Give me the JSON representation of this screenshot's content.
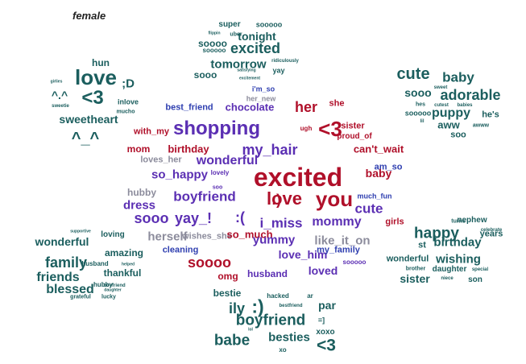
{
  "title": "female",
  "palette": {
    "teal": "#1b5e5e",
    "purple": "#5b2fb3",
    "blue": "#2f3fb0",
    "red": "#b0102a",
    "gray": "#8c8c9c",
    "darkred": "#8b0a22"
  },
  "words": [
    {
      "t": "super",
      "c": "teal"
    },
    {
      "t": "sooooo",
      "c": "teal"
    },
    {
      "t": "flippin",
      "c": "teal"
    },
    {
      "t": "uber",
      "c": "teal"
    },
    {
      "t": "tonight",
      "c": "teal"
    },
    {
      "t": "soooo",
      "c": "teal"
    },
    {
      "t": "sooooo",
      "c": "teal"
    },
    {
      "t": "excited",
      "c": "teal"
    },
    {
      "t": "tomorrow",
      "c": "teal"
    },
    {
      "t": "ridiculously",
      "c": "teal"
    },
    {
      "t": "sooo",
      "c": "teal"
    },
    {
      "t": "satisfying",
      "c": "teal"
    },
    {
      "t": "excitement",
      "c": "teal"
    },
    {
      "t": "yay",
      "c": "teal"
    },
    {
      "t": "hun",
      "c": "teal"
    },
    {
      "t": "love",
      "c": "teal"
    },
    {
      "t": ";D",
      "c": "teal"
    },
    {
      "t": "girlies",
      "c": "teal"
    },
    {
      "t": "^.^",
      "c": "teal"
    },
    {
      "t": "<3",
      "c": "teal"
    },
    {
      "t": "inlove",
      "c": "teal"
    },
    {
      "t": "sweetie",
      "c": "teal"
    },
    {
      "t": "mucho",
      "c": "teal"
    },
    {
      "t": "sweetheart",
      "c": "teal"
    },
    {
      "t": "^_^",
      "c": "teal"
    },
    {
      "t": "cute",
      "c": "teal"
    },
    {
      "t": "baby",
      "c": "teal"
    },
    {
      "t": "sweet",
      "c": "teal"
    },
    {
      "t": "sooo",
      "c": "teal"
    },
    {
      "t": "adorable",
      "c": "teal"
    },
    {
      "t": "hes",
      "c": "teal"
    },
    {
      "t": "cutest",
      "c": "teal"
    },
    {
      "t": "babies",
      "c": "teal"
    },
    {
      "t": "sooooo",
      "c": "teal"
    },
    {
      "t": "puppy",
      "c": "teal"
    },
    {
      "t": "he's",
      "c": "teal"
    },
    {
      "t": "lil",
      "c": "teal"
    },
    {
      "t": "aww",
      "c": "teal"
    },
    {
      "t": "awww",
      "c": "teal"
    },
    {
      "t": "soo",
      "c": "teal"
    },
    {
      "t": "her_new",
      "c": "gray"
    },
    {
      "t": "i'm_so",
      "c": "blue"
    },
    {
      "t": "best_friend",
      "c": "blue"
    },
    {
      "t": "chocolate",
      "c": "purple"
    },
    {
      "t": "her",
      "c": "red"
    },
    {
      "t": "she",
      "c": "red"
    },
    {
      "t": "with_my",
      "c": "red"
    },
    {
      "t": "shopping",
      "c": "purple"
    },
    {
      "t": "ugh",
      "c": "red"
    },
    {
      "t": "<3",
      "c": "red"
    },
    {
      "t": "sister",
      "c": "red"
    },
    {
      "t": "proud_of",
      "c": "red"
    },
    {
      "t": "mom",
      "c": "red"
    },
    {
      "t": "birthday",
      "c": "red"
    },
    {
      "t": "my_hair",
      "c": "purple"
    },
    {
      "t": "can't_wait",
      "c": "red"
    },
    {
      "t": "loves_her",
      "c": "gray"
    },
    {
      "t": "wonderful",
      "c": "purple"
    },
    {
      "t": "excited",
      "c": "red"
    },
    {
      "t": "am_so",
      "c": "blue"
    },
    {
      "t": "so_happy",
      "c": "purple"
    },
    {
      "t": "lovely",
      "c": "purple"
    },
    {
      "t": "baby",
      "c": "red"
    },
    {
      "t": "hubby",
      "c": "gray"
    },
    {
      "t": "soo",
      "c": "purple"
    },
    {
      "t": "boyfriend",
      "c": "purple"
    },
    {
      "t": "love",
      "c": "red"
    },
    {
      "t": ":)",
      "c": "red"
    },
    {
      "t": "you",
      "c": "red"
    },
    {
      "t": "much_fun",
      "c": "blue"
    },
    {
      "t": "dress",
      "c": "purple"
    },
    {
      "t": "cute",
      "c": "purple"
    },
    {
      "t": "sooo",
      "c": "purple"
    },
    {
      "t": "yay_!",
      "c": "purple"
    },
    {
      "t": ":(",
      "c": "purple"
    },
    {
      "t": "i_miss",
      "c": "purple"
    },
    {
      "t": "mommy",
      "c": "purple"
    },
    {
      "t": "girls",
      "c": "red"
    },
    {
      "t": "herself",
      "c": "gray"
    },
    {
      "t": "wishes_she",
      "c": "gray"
    },
    {
      "t": "so_much",
      "c": "red"
    },
    {
      "t": "yummy",
      "c": "purple"
    },
    {
      "t": "like_it_on",
      "c": "gray"
    },
    {
      "t": "cleaning",
      "c": "blue"
    },
    {
      "t": "soooo",
      "c": "red"
    },
    {
      "t": "love_him",
      "c": "purple"
    },
    {
      "t": "my_family",
      "c": "blue"
    },
    {
      "t": "sooooo",
      "c": "purple"
    },
    {
      "t": "omg",
      "c": "red"
    },
    {
      "t": "husband",
      "c": "purple"
    },
    {
      "t": "loved",
      "c": "purple"
    },
    {
      "t": "loving",
      "c": "teal"
    },
    {
      "t": "supportive",
      "c": "teal"
    },
    {
      "t": "wonderful",
      "c": "teal"
    },
    {
      "t": "amazing",
      "c": "teal"
    },
    {
      "t": "family",
      "c": "teal"
    },
    {
      "t": "husband",
      "c": "teal"
    },
    {
      "t": "helped",
      "c": "teal"
    },
    {
      "t": "thankful",
      "c": "teal"
    },
    {
      "t": "friends",
      "c": "teal"
    },
    {
      "t": "blessed",
      "c": "teal"
    },
    {
      "t": "hubby",
      "c": "teal"
    },
    {
      "t": "boyfriend",
      "c": "teal"
    },
    {
      "t": "daughter",
      "c": "teal"
    },
    {
      "t": "grateful",
      "c": "teal"
    },
    {
      "t": "lucky",
      "c": "teal"
    },
    {
      "t": "turns",
      "c": "teal"
    },
    {
      "t": "nephew",
      "c": "teal"
    },
    {
      "t": "happy",
      "c": "teal"
    },
    {
      "t": "celebrate",
      "c": "teal"
    },
    {
      "t": "years",
      "c": "teal"
    },
    {
      "t": "st",
      "c": "teal"
    },
    {
      "t": "birthday",
      "c": "teal"
    },
    {
      "t": "wonderful",
      "c": "teal"
    },
    {
      "t": "wishing",
      "c": "teal"
    },
    {
      "t": "brother",
      "c": "teal"
    },
    {
      "t": "daughter",
      "c": "teal"
    },
    {
      "t": "special",
      "c": "teal"
    },
    {
      "t": "sister",
      "c": "teal"
    },
    {
      "t": "niece",
      "c": "teal"
    },
    {
      "t": "son",
      "c": "teal"
    },
    {
      "t": "bestie",
      "c": "teal"
    },
    {
      "t": "hacked",
      "c": "teal"
    },
    {
      "t": "ar",
      "c": "teal"
    },
    {
      "t": "bestfriend",
      "c": "teal"
    },
    {
      "t": ":)",
      "c": "teal"
    },
    {
      "t": "ily",
      "c": "teal"
    },
    {
      "t": "par",
      "c": "teal"
    },
    {
      "t": "boyfriend",
      "c": "teal"
    },
    {
      "t": "=]",
      "c": "teal"
    },
    {
      "t": "lol",
      "c": "teal"
    },
    {
      "t": "babe",
      "c": "teal"
    },
    {
      "t": "besties",
      "c": "teal"
    },
    {
      "t": "xoxo",
      "c": "teal"
    },
    {
      "t": "<3",
      "c": "teal"
    },
    {
      "t": "xo",
      "c": "teal"
    }
  ]
}
